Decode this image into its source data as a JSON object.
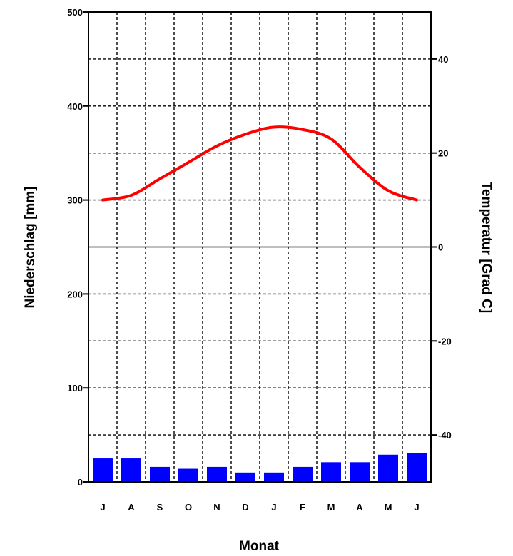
{
  "chart_data": {
    "type": "bar",
    "xlabel": "Monat",
    "categories": [
      "J",
      "A",
      "S",
      "O",
      "N",
      "D",
      "J",
      "F",
      "M",
      "A",
      "M",
      "J"
    ],
    "series": [
      {
        "axis": "left",
        "type": "bar",
        "color": "#0000ff",
        "values": [
          25,
          25,
          16,
          14,
          16,
          10,
          10,
          16,
          21,
          21,
          29,
          31
        ]
      },
      {
        "axis": "right",
        "type": "line",
        "color": "#ff0000",
        "values": [
          10,
          11,
          14.5,
          18,
          21.5,
          24,
          25.5,
          25,
          23,
          17,
          12,
          10
        ]
      }
    ],
    "y_left": {
      "label": "Niederschlag [mm]",
      "ylim": [
        0,
        500
      ],
      "ticks": [
        "0",
        "100",
        "200",
        "300",
        "400",
        "500"
      ]
    },
    "y_right": {
      "label": "Temperatur [Grad C]",
      "ylim": [
        -50,
        50
      ],
      "ticks": [
        "-40",
        "-20",
        "0",
        "20",
        "40"
      ]
    },
    "grid": true
  }
}
